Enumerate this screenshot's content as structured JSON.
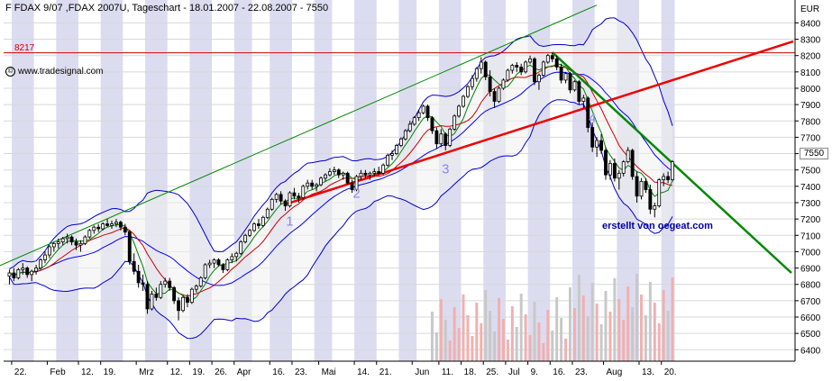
{
  "chart_data": {
    "type": "candlestick",
    "title": "F FDAX 9/07 ,FDAX 2007U, Tageschart - 18.01.2007 - 22.08.2007 - 7550",
    "credit": "www.tradesignal.com",
    "creator": "erstellt von oegeat.com",
    "unit": "EUR",
    "last_price": "7550",
    "resistance": {
      "label": "8217",
      "value": 8217
    },
    "ylim": [
      6330,
      8540
    ],
    "y_ticks": [
      6400,
      6500,
      6600,
      6700,
      6800,
      6900,
      7000,
      7100,
      7200,
      7300,
      7400,
      7500,
      7600,
      7700,
      7800,
      7900,
      8000,
      8100,
      8200,
      8300,
      8400
    ],
    "x_ticks": [
      "22.",
      "Feb",
      "12.",
      "19.",
      "Mrz",
      "12.",
      "19.",
      "26.",
      "Apr",
      "16.",
      "23.",
      "Mai",
      "14.",
      "21.",
      "Jun",
      "11.",
      "18.",
      "25.",
      "Jul",
      "9.",
      "16.",
      "23.",
      "Aug",
      "13.",
      "20."
    ],
    "wave_labels": [
      "1",
      "2",
      "3",
      "4"
    ],
    "colors": {
      "up": "#ffffff",
      "down": "#000000",
      "upper_band": "#0000cc",
      "lower_band": "#0000cc",
      "ma_fast": "#008000",
      "ma_mid": "#cc0000",
      "ma_slow": "#0000ff",
      "trendline_support": "#ee0000",
      "trendline_down": "#008800",
      "channel_top": "#008800",
      "resistance": "#cc0000",
      "stripe": "#dcdcf0",
      "volume_up": "#f0b0b0",
      "volume_down": "#c8c8c8"
    },
    "candles": [
      {
        "d": "2007-01-19",
        "o": 6850,
        "h": 6890,
        "l": 6800,
        "c": 6870
      },
      {
        "d": "2007-01-22",
        "o": 6870,
        "h": 6900,
        "l": 6820,
        "c": 6840
      },
      {
        "d": "2007-01-23",
        "o": 6840,
        "h": 6900,
        "l": 6830,
        "c": 6890
      },
      {
        "d": "2007-01-24",
        "o": 6890,
        "h": 6930,
        "l": 6860,
        "c": 6900
      },
      {
        "d": "2007-01-25",
        "o": 6900,
        "h": 6910,
        "l": 6840,
        "c": 6860
      },
      {
        "d": "2007-01-26",
        "o": 6860,
        "h": 6890,
        "l": 6820,
        "c": 6880
      },
      {
        "d": "2007-01-29",
        "o": 6880,
        "h": 6920,
        "l": 6860,
        "c": 6900
      },
      {
        "d": "2007-01-30",
        "o": 6900,
        "h": 6960,
        "l": 6890,
        "c": 6950
      },
      {
        "d": "2007-01-31",
        "o": 6950,
        "h": 7000,
        "l": 6930,
        "c": 6980
      },
      {
        "d": "2007-02-01",
        "o": 6980,
        "h": 7040,
        "l": 6960,
        "c": 7030
      },
      {
        "d": "2007-02-02",
        "o": 7030,
        "h": 7060,
        "l": 7000,
        "c": 7050
      },
      {
        "d": "2007-02-05",
        "o": 7050,
        "h": 7080,
        "l": 7020,
        "c": 7060
      },
      {
        "d": "2007-02-06",
        "o": 7060,
        "h": 7090,
        "l": 7040,
        "c": 7080
      },
      {
        "d": "2007-02-07",
        "o": 7080,
        "h": 7110,
        "l": 7050,
        "c": 7090
      },
      {
        "d": "2007-02-08",
        "o": 7090,
        "h": 7100,
        "l": 7040,
        "c": 7060
      },
      {
        "d": "2007-02-09",
        "o": 7060,
        "h": 7080,
        "l": 7010,
        "c": 7040
      },
      {
        "d": "2007-02-12",
        "o": 7040,
        "h": 7070,
        "l": 7000,
        "c": 7050
      },
      {
        "d": "2007-02-13",
        "o": 7050,
        "h": 7100,
        "l": 7040,
        "c": 7090
      },
      {
        "d": "2007-02-14",
        "o": 7090,
        "h": 7140,
        "l": 7080,
        "c": 7130
      },
      {
        "d": "2007-02-15",
        "o": 7130,
        "h": 7160,
        "l": 7110,
        "c": 7150
      },
      {
        "d": "2007-02-16",
        "o": 7150,
        "h": 7170,
        "l": 7120,
        "c": 7140
      },
      {
        "d": "2007-02-19",
        "o": 7140,
        "h": 7180,
        "l": 7130,
        "c": 7170
      },
      {
        "d": "2007-02-20",
        "o": 7170,
        "h": 7200,
        "l": 7150,
        "c": 7160
      },
      {
        "d": "2007-02-21",
        "o": 7160,
        "h": 7190,
        "l": 7140,
        "c": 7170
      },
      {
        "d": "2007-02-22",
        "o": 7170,
        "h": 7200,
        "l": 7150,
        "c": 7180
      },
      {
        "d": "2007-02-23",
        "o": 7180,
        "h": 7190,
        "l": 7130,
        "c": 7150
      },
      {
        "d": "2007-02-26",
        "o": 7150,
        "h": 7170,
        "l": 7100,
        "c": 7120
      },
      {
        "d": "2007-02-27",
        "o": 7120,
        "h": 7130,
        "l": 6920,
        "c": 6940
      },
      {
        "d": "2007-02-28",
        "o": 6940,
        "h": 6990,
        "l": 6860,
        "c": 6880
      },
      {
        "d": "2007-03-01",
        "o": 6880,
        "h": 6920,
        "l": 6780,
        "c": 6810
      },
      {
        "d": "2007-03-02",
        "o": 6810,
        "h": 6860,
        "l": 6760,
        "c": 6800
      },
      {
        "d": "2007-03-05",
        "o": 6800,
        "h": 6820,
        "l": 6620,
        "c": 6650
      },
      {
        "d": "2007-03-06",
        "o": 6650,
        "h": 6760,
        "l": 6640,
        "c": 6740
      },
      {
        "d": "2007-03-07",
        "o": 6740,
        "h": 6780,
        "l": 6700,
        "c": 6720
      },
      {
        "d": "2007-03-08",
        "o": 6720,
        "h": 6820,
        "l": 6710,
        "c": 6800
      },
      {
        "d": "2007-03-09",
        "o": 6800,
        "h": 6840,
        "l": 6780,
        "c": 6820
      },
      {
        "d": "2007-03-12",
        "o": 6820,
        "h": 6840,
        "l": 6760,
        "c": 6780
      },
      {
        "d": "2007-03-13",
        "o": 6780,
        "h": 6790,
        "l": 6680,
        "c": 6700
      },
      {
        "d": "2007-03-14",
        "o": 6700,
        "h": 6720,
        "l": 6580,
        "c": 6640
      },
      {
        "d": "2007-03-15",
        "o": 6640,
        "h": 6730,
        "l": 6630,
        "c": 6720
      },
      {
        "d": "2007-03-16",
        "o": 6720,
        "h": 6740,
        "l": 6660,
        "c": 6690
      },
      {
        "d": "2007-03-19",
        "o": 6690,
        "h": 6780,
        "l": 6680,
        "c": 6770
      },
      {
        "d": "2007-03-20",
        "o": 6770,
        "h": 6800,
        "l": 6750,
        "c": 6790
      },
      {
        "d": "2007-03-21",
        "o": 6790,
        "h": 6850,
        "l": 6780,
        "c": 6840
      },
      {
        "d": "2007-03-22",
        "o": 6840,
        "h": 6930,
        "l": 6830,
        "c": 6920
      },
      {
        "d": "2007-03-23",
        "o": 6920,
        "h": 6950,
        "l": 6900,
        "c": 6930
      },
      {
        "d": "2007-03-26",
        "o": 6930,
        "h": 6960,
        "l": 6900,
        "c": 6950
      },
      {
        "d": "2007-03-27",
        "o": 6950,
        "h": 6960,
        "l": 6910,
        "c": 6920
      },
      {
        "d": "2007-03-28",
        "o": 6920,
        "h": 6930,
        "l": 6870,
        "c": 6890
      },
      {
        "d": "2007-03-29",
        "o": 6890,
        "h": 6960,
        "l": 6880,
        "c": 6950
      },
      {
        "d": "2007-03-30",
        "o": 6950,
        "h": 6990,
        "l": 6930,
        "c": 6970
      },
      {
        "d": "2007-04-02",
        "o": 6970,
        "h": 7000,
        "l": 6940,
        "c": 6990
      },
      {
        "d": "2007-04-03",
        "o": 6990,
        "h": 7070,
        "l": 6980,
        "c": 7060
      },
      {
        "d": "2007-04-04",
        "o": 7060,
        "h": 7110,
        "l": 7050,
        "c": 7100
      },
      {
        "d": "2007-04-05",
        "o": 7100,
        "h": 7140,
        "l": 7090,
        "c": 7130
      },
      {
        "d": "2007-04-10",
        "o": 7130,
        "h": 7180,
        "l": 7120,
        "c": 7170
      },
      {
        "d": "2007-04-11",
        "o": 7170,
        "h": 7200,
        "l": 7140,
        "c": 7160
      },
      {
        "d": "2007-04-12",
        "o": 7160,
        "h": 7220,
        "l": 7150,
        "c": 7210
      },
      {
        "d": "2007-04-13",
        "o": 7210,
        "h": 7270,
        "l": 7200,
        "c": 7260
      },
      {
        "d": "2007-04-16",
        "o": 7260,
        "h": 7330,
        "l": 7250,
        "c": 7320
      },
      {
        "d": "2007-04-17",
        "o": 7320,
        "h": 7360,
        "l": 7300,
        "c": 7350
      },
      {
        "d": "2007-04-18",
        "o": 7350,
        "h": 7370,
        "l": 7290,
        "c": 7310
      },
      {
        "d": "2007-04-19",
        "o": 7310,
        "h": 7320,
        "l": 7250,
        "c": 7280
      },
      {
        "d": "2007-04-20",
        "o": 7280,
        "h": 7370,
        "l": 7270,
        "c": 7360
      },
      {
        "d": "2007-04-23",
        "o": 7360,
        "h": 7390,
        "l": 7320,
        "c": 7340
      },
      {
        "d": "2007-04-24",
        "o": 7340,
        "h": 7360,
        "l": 7300,
        "c": 7330
      },
      {
        "d": "2007-04-25",
        "o": 7330,
        "h": 7410,
        "l": 7320,
        "c": 7400
      },
      {
        "d": "2007-04-26",
        "o": 7400,
        "h": 7440,
        "l": 7380,
        "c": 7420
      },
      {
        "d": "2007-04-27",
        "o": 7420,
        "h": 7440,
        "l": 7380,
        "c": 7400
      },
      {
        "d": "2007-04-30",
        "o": 7400,
        "h": 7420,
        "l": 7370,
        "c": 7410
      },
      {
        "d": "2007-05-02",
        "o": 7410,
        "h": 7460,
        "l": 7400,
        "c": 7450
      },
      {
        "d": "2007-05-03",
        "o": 7450,
        "h": 7480,
        "l": 7430,
        "c": 7470
      },
      {
        "d": "2007-05-04",
        "o": 7470,
        "h": 7510,
        "l": 7460,
        "c": 7490
      },
      {
        "d": "2007-05-07",
        "o": 7490,
        "h": 7520,
        "l": 7470,
        "c": 7500
      },
      {
        "d": "2007-05-08",
        "o": 7500,
        "h": 7510,
        "l": 7450,
        "c": 7470
      },
      {
        "d": "2007-05-09",
        "o": 7470,
        "h": 7490,
        "l": 7440,
        "c": 7480
      },
      {
        "d": "2007-05-10",
        "o": 7480,
        "h": 7490,
        "l": 7410,
        "c": 7420
      },
      {
        "d": "2007-05-11",
        "o": 7420,
        "h": 7440,
        "l": 7360,
        "c": 7380
      },
      {
        "d": "2007-05-14",
        "o": 7380,
        "h": 7470,
        "l": 7370,
        "c": 7460
      },
      {
        "d": "2007-05-15",
        "o": 7460,
        "h": 7500,
        "l": 7440,
        "c": 7480
      },
      {
        "d": "2007-05-16",
        "o": 7480,
        "h": 7500,
        "l": 7450,
        "c": 7470
      },
      {
        "d": "2007-05-17",
        "o": 7470,
        "h": 7490,
        "l": 7440,
        "c": 7480
      },
      {
        "d": "2007-05-18",
        "o": 7480,
        "h": 7510,
        "l": 7460,
        "c": 7490
      },
      {
        "d": "2007-05-21",
        "o": 7490,
        "h": 7520,
        "l": 7470,
        "c": 7480
      },
      {
        "d": "2007-05-22",
        "o": 7480,
        "h": 7540,
        "l": 7470,
        "c": 7530
      },
      {
        "d": "2007-05-23",
        "o": 7530,
        "h": 7600,
        "l": 7520,
        "c": 7590
      },
      {
        "d": "2007-05-24",
        "o": 7590,
        "h": 7620,
        "l": 7560,
        "c": 7600
      },
      {
        "d": "2007-05-25",
        "o": 7600,
        "h": 7660,
        "l": 7590,
        "c": 7650
      },
      {
        "d": "2007-05-29",
        "o": 7650,
        "h": 7700,
        "l": 7640,
        "c": 7690
      },
      {
        "d": "2007-05-30",
        "o": 7690,
        "h": 7750,
        "l": 7680,
        "c": 7740
      },
      {
        "d": "2007-05-31",
        "o": 7740,
        "h": 7800,
        "l": 7730,
        "c": 7780
      },
      {
        "d": "2007-06-01",
        "o": 7780,
        "h": 7830,
        "l": 7770,
        "c": 7820
      },
      {
        "d": "2007-06-04",
        "o": 7820,
        "h": 7870,
        "l": 7800,
        "c": 7850
      },
      {
        "d": "2007-06-05",
        "o": 7850,
        "h": 7900,
        "l": 7840,
        "c": 7890
      },
      {
        "d": "2007-06-06",
        "o": 7890,
        "h": 7900,
        "l": 7800,
        "c": 7820
      },
      {
        "d": "2007-06-07",
        "o": 7820,
        "h": 7830,
        "l": 7720,
        "c": 7740
      },
      {
        "d": "2007-06-08",
        "o": 7740,
        "h": 7760,
        "l": 7630,
        "c": 7660
      },
      {
        "d": "2007-06-11",
        "o": 7660,
        "h": 7750,
        "l": 7640,
        "c": 7720
      },
      {
        "d": "2007-06-12",
        "o": 7720,
        "h": 7730,
        "l": 7620,
        "c": 7650
      },
      {
        "d": "2007-06-13",
        "o": 7650,
        "h": 7760,
        "l": 7640,
        "c": 7750
      },
      {
        "d": "2007-06-14",
        "o": 7750,
        "h": 7840,
        "l": 7740,
        "c": 7830
      },
      {
        "d": "2007-06-15",
        "o": 7830,
        "h": 7900,
        "l": 7820,
        "c": 7890
      },
      {
        "d": "2007-06-18",
        "o": 7890,
        "h": 7960,
        "l": 7880,
        "c": 7950
      },
      {
        "d": "2007-06-19",
        "o": 7950,
        "h": 8020,
        "l": 7940,
        "c": 8010
      },
      {
        "d": "2007-06-20",
        "o": 8010,
        "h": 8080,
        "l": 7990,
        "c": 8060
      },
      {
        "d": "2007-06-21",
        "o": 8060,
        "h": 8130,
        "l": 8040,
        "c": 8120
      },
      {
        "d": "2007-06-22",
        "o": 8120,
        "h": 8190,
        "l": 8090,
        "c": 8160
      },
      {
        "d": "2007-06-25",
        "o": 8160,
        "h": 8170,
        "l": 8050,
        "c": 8070
      },
      {
        "d": "2007-06-26",
        "o": 8070,
        "h": 8110,
        "l": 7950,
        "c": 7980
      },
      {
        "d": "2007-06-27",
        "o": 7980,
        "h": 8000,
        "l": 7880,
        "c": 7920
      },
      {
        "d": "2007-06-28",
        "o": 7920,
        "h": 8010,
        "l": 7910,
        "c": 8000
      },
      {
        "d": "2007-06-29",
        "o": 8000,
        "h": 8060,
        "l": 7990,
        "c": 8050
      },
      {
        "d": "2007-07-02",
        "o": 8050,
        "h": 8120,
        "l": 8040,
        "c": 8110
      },
      {
        "d": "2007-07-03",
        "o": 8110,
        "h": 8150,
        "l": 8090,
        "c": 8140
      },
      {
        "d": "2007-07-04",
        "o": 8140,
        "h": 8160,
        "l": 8100,
        "c": 8130
      },
      {
        "d": "2007-07-05",
        "o": 8130,
        "h": 8150,
        "l": 8080,
        "c": 8100
      },
      {
        "d": "2007-07-06",
        "o": 8100,
        "h": 8170,
        "l": 8090,
        "c": 8160
      },
      {
        "d": "2007-07-09",
        "o": 8160,
        "h": 8200,
        "l": 8150,
        "c": 8180
      },
      {
        "d": "2007-07-10",
        "o": 8180,
        "h": 8190,
        "l": 8020,
        "c": 8040
      },
      {
        "d": "2007-07-11",
        "o": 8040,
        "h": 8090,
        "l": 7990,
        "c": 8080
      },
      {
        "d": "2007-07-12",
        "o": 8080,
        "h": 8170,
        "l": 8070,
        "c": 8160
      },
      {
        "d": "2007-07-13",
        "o": 8160,
        "h": 8210,
        "l": 8150,
        "c": 8200
      },
      {
        "d": "2007-07-16",
        "o": 8200,
        "h": 8220,
        "l": 8160,
        "c": 8180
      },
      {
        "d": "2007-07-17",
        "o": 8180,
        "h": 8200,
        "l": 8110,
        "c": 8130
      },
      {
        "d": "2007-07-18",
        "o": 8130,
        "h": 8150,
        "l": 8030,
        "c": 8050
      },
      {
        "d": "2007-07-19",
        "o": 8050,
        "h": 8100,
        "l": 8030,
        "c": 8090
      },
      {
        "d": "2007-07-20",
        "o": 8090,
        "h": 8100,
        "l": 7970,
        "c": 7990
      },
      {
        "d": "2007-07-23",
        "o": 7990,
        "h": 8050,
        "l": 7980,
        "c": 8040
      },
      {
        "d": "2007-07-24",
        "o": 8040,
        "h": 8050,
        "l": 7900,
        "c": 7920
      },
      {
        "d": "2007-07-25",
        "o": 7920,
        "h": 7960,
        "l": 7880,
        "c": 7940
      },
      {
        "d": "2007-07-26",
        "o": 7940,
        "h": 7950,
        "l": 7730,
        "c": 7760
      },
      {
        "d": "2007-07-27",
        "o": 7760,
        "h": 7790,
        "l": 7610,
        "c": 7640
      },
      {
        "d": "2007-07-30",
        "o": 7640,
        "h": 7700,
        "l": 7580,
        "c": 7680
      },
      {
        "d": "2007-07-31",
        "o": 7680,
        "h": 7720,
        "l": 7600,
        "c": 7620
      },
      {
        "d": "2007-08-01",
        "o": 7620,
        "h": 7640,
        "l": 7440,
        "c": 7470
      },
      {
        "d": "2007-08-02",
        "o": 7470,
        "h": 7560,
        "l": 7440,
        "c": 7540
      },
      {
        "d": "2007-08-03",
        "o": 7540,
        "h": 7570,
        "l": 7430,
        "c": 7450
      },
      {
        "d": "2007-08-06",
        "o": 7450,
        "h": 7500,
        "l": 7380,
        "c": 7480
      },
      {
        "d": "2007-08-07",
        "o": 7480,
        "h": 7560,
        "l": 7460,
        "c": 7550
      },
      {
        "d": "2007-08-08",
        "o": 7550,
        "h": 7640,
        "l": 7540,
        "c": 7620
      },
      {
        "d": "2007-08-09",
        "o": 7620,
        "h": 7630,
        "l": 7440,
        "c": 7460
      },
      {
        "d": "2007-08-10",
        "o": 7460,
        "h": 7490,
        "l": 7300,
        "c": 7340
      },
      {
        "d": "2007-08-13",
        "o": 7340,
        "h": 7450,
        "l": 7320,
        "c": 7430
      },
      {
        "d": "2007-08-14",
        "o": 7430,
        "h": 7450,
        "l": 7360,
        "c": 7380
      },
      {
        "d": "2007-08-15",
        "o": 7380,
        "h": 7410,
        "l": 7230,
        "c": 7260
      },
      {
        "d": "2007-08-16",
        "o": 7260,
        "h": 7300,
        "l": 7210,
        "c": 7280
      },
      {
        "d": "2007-08-17",
        "o": 7280,
        "h": 7450,
        "l": 7270,
        "c": 7440
      },
      {
        "d": "2007-08-20",
        "o": 7440,
        "h": 7480,
        "l": 7400,
        "c": 7460
      },
      {
        "d": "2007-08-21",
        "o": 7460,
        "h": 7490,
        "l": 7420,
        "c": 7440
      },
      {
        "d": "2007-08-22",
        "o": 7440,
        "h": 7560,
        "l": 7430,
        "c": 7550
      }
    ]
  }
}
